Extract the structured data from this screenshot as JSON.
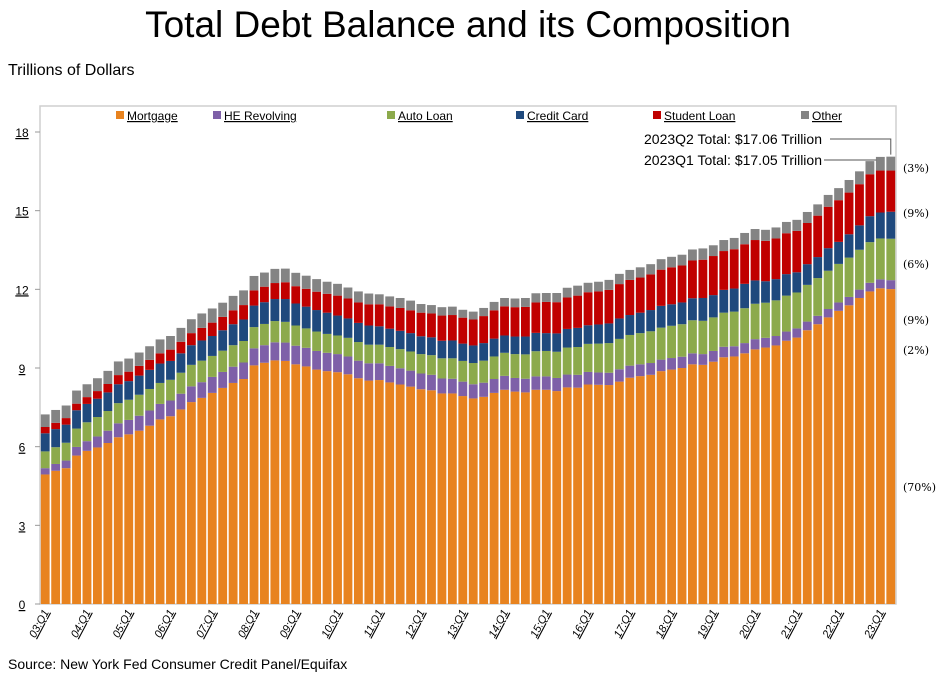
{
  "chart_data": {
    "type": "bar",
    "stacked": true,
    "title": "Total Debt Balance and its Composition",
    "ylabel": "Trillions of Dollars",
    "source": "Source: New York Fed Consumer Credit Panel/Equifax",
    "ylim": [
      0,
      18
    ],
    "yticks": [
      0,
      3,
      6,
      9,
      12,
      15,
      18
    ],
    "grid": false,
    "legend_position": "top",
    "categories": [
      "03:Q1",
      "03:Q2",
      "03:Q3",
      "03:Q4",
      "04:Q1",
      "04:Q2",
      "04:Q3",
      "04:Q4",
      "05:Q1",
      "05:Q2",
      "05:Q3",
      "05:Q4",
      "06:Q1",
      "06:Q2",
      "06:Q3",
      "06:Q4",
      "07:Q1",
      "07:Q2",
      "07:Q3",
      "07:Q4",
      "08:Q1",
      "08:Q2",
      "08:Q3",
      "08:Q4",
      "09:Q1",
      "09:Q2",
      "09:Q3",
      "09:Q4",
      "10:Q1",
      "10:Q2",
      "10:Q3",
      "10:Q4",
      "11:Q1",
      "11:Q2",
      "11:Q3",
      "11:Q4",
      "12:Q1",
      "12:Q2",
      "12:Q3",
      "12:Q4",
      "13:Q1",
      "13:Q2",
      "13:Q3",
      "13:Q4",
      "14:Q1",
      "14:Q2",
      "14:Q3",
      "14:Q4",
      "15:Q1",
      "15:Q2",
      "15:Q3",
      "15:Q4",
      "16:Q1",
      "16:Q2",
      "16:Q3",
      "16:Q4",
      "17:Q1",
      "17:Q2",
      "17:Q3",
      "17:Q4",
      "18:Q1",
      "18:Q2",
      "18:Q3",
      "18:Q4",
      "19:Q1",
      "19:Q2",
      "19:Q3",
      "19:Q4",
      "20:Q1",
      "20:Q2",
      "20:Q3",
      "20:Q4",
      "21:Q1",
      "21:Q2",
      "21:Q3",
      "21:Q4",
      "22:Q1",
      "22:Q2",
      "22:Q3",
      "22:Q4",
      "23:Q1",
      "23:Q2"
    ],
    "series": [
      {
        "name": "Mortgage",
        "color": "#E8831F",
        "share_label": "(70%)",
        "values": [
          4.94,
          5.08,
          5.18,
          5.66,
          5.84,
          5.97,
          6.14,
          6.36,
          6.47,
          6.61,
          6.8,
          7.04,
          7.16,
          7.42,
          7.7,
          7.86,
          8.05,
          8.24,
          8.43,
          8.58,
          9.1,
          9.2,
          9.29,
          9.27,
          9.14,
          9.06,
          8.94,
          8.88,
          8.84,
          8.76,
          8.61,
          8.52,
          8.54,
          8.45,
          8.37,
          8.29,
          8.19,
          8.15,
          8.03,
          8.03,
          7.93,
          7.84,
          7.9,
          8.05,
          8.17,
          8.1,
          8.07,
          8.17,
          8.17,
          8.12,
          8.26,
          8.25,
          8.37,
          8.36,
          8.35,
          8.48,
          8.63,
          8.69,
          8.74,
          8.88,
          8.94,
          9.0,
          9.14,
          9.12,
          9.24,
          9.41,
          9.44,
          9.56,
          9.71,
          9.78,
          9.86,
          10.04,
          10.16,
          10.44,
          10.67,
          10.93,
          11.18,
          11.39,
          11.67,
          11.92,
          12.04,
          12.01
        ]
      },
      {
        "name": "HE Revolving",
        "color": "#7E60A8",
        "share_label": "(2%)",
        "values": [
          0.24,
          0.26,
          0.29,
          0.33,
          0.37,
          0.42,
          0.47,
          0.53,
          0.55,
          0.57,
          0.58,
          0.59,
          0.6,
          0.6,
          0.6,
          0.6,
          0.61,
          0.61,
          0.62,
          0.63,
          0.65,
          0.67,
          0.69,
          0.7,
          0.71,
          0.71,
          0.71,
          0.7,
          0.69,
          0.68,
          0.67,
          0.66,
          0.64,
          0.63,
          0.62,
          0.61,
          0.6,
          0.59,
          0.57,
          0.56,
          0.55,
          0.54,
          0.54,
          0.53,
          0.53,
          0.52,
          0.52,
          0.51,
          0.51,
          0.5,
          0.49,
          0.49,
          0.48,
          0.47,
          0.47,
          0.47,
          0.46,
          0.45,
          0.45,
          0.44,
          0.44,
          0.43,
          0.42,
          0.41,
          0.41,
          0.4,
          0.39,
          0.39,
          0.39,
          0.37,
          0.36,
          0.35,
          0.35,
          0.33,
          0.32,
          0.32,
          0.32,
          0.32,
          0.32,
          0.33,
          0.34,
          0.34
        ]
      },
      {
        "name": "Auto Loan",
        "color": "#8CAA4C",
        "share_label": "(9%)",
        "values": [
          0.64,
          0.64,
          0.68,
          0.7,
          0.72,
          0.74,
          0.75,
          0.77,
          0.77,
          0.8,
          0.82,
          0.8,
          0.79,
          0.8,
          0.82,
          0.82,
          0.8,
          0.81,
          0.82,
          0.82,
          0.81,
          0.81,
          0.81,
          0.79,
          0.77,
          0.74,
          0.74,
          0.72,
          0.71,
          0.71,
          0.71,
          0.71,
          0.71,
          0.72,
          0.73,
          0.73,
          0.74,
          0.75,
          0.77,
          0.78,
          0.79,
          0.81,
          0.84,
          0.86,
          0.88,
          0.91,
          0.93,
          0.96,
          0.97,
          1.0,
          1.03,
          1.06,
          1.07,
          1.1,
          1.13,
          1.16,
          1.17,
          1.19,
          1.21,
          1.22,
          1.23,
          1.24,
          1.26,
          1.27,
          1.28,
          1.3,
          1.32,
          1.33,
          1.35,
          1.34,
          1.36,
          1.37,
          1.37,
          1.4,
          1.44,
          1.46,
          1.47,
          1.5,
          1.52,
          1.55,
          1.56,
          1.58
        ]
      },
      {
        "name": "Credit Card",
        "color": "#1F497D",
        "share_label": "(6%)",
        "values": [
          0.69,
          0.69,
          0.69,
          0.7,
          0.7,
          0.7,
          0.71,
          0.72,
          0.71,
          0.73,
          0.73,
          0.74,
          0.72,
          0.74,
          0.75,
          0.77,
          0.76,
          0.78,
          0.8,
          0.82,
          0.82,
          0.83,
          0.84,
          0.87,
          0.84,
          0.83,
          0.82,
          0.81,
          0.76,
          0.74,
          0.73,
          0.73,
          0.7,
          0.7,
          0.7,
          0.7,
          0.68,
          0.68,
          0.67,
          0.68,
          0.66,
          0.67,
          0.67,
          0.68,
          0.66,
          0.67,
          0.68,
          0.7,
          0.68,
          0.7,
          0.71,
          0.73,
          0.71,
          0.73,
          0.75,
          0.78,
          0.76,
          0.78,
          0.81,
          0.83,
          0.82,
          0.83,
          0.84,
          0.87,
          0.85,
          0.87,
          0.88,
          0.93,
          0.89,
          0.82,
          0.81,
          0.82,
          0.77,
          0.79,
          0.8,
          0.86,
          0.84,
          0.89,
          0.93,
          0.99,
          0.99,
          1.03
        ]
      },
      {
        "name": "Student Loan",
        "color": "#C00000",
        "share_label": "(9%)",
        "values": [
          0.24,
          0.24,
          0.25,
          0.25,
          0.26,
          0.29,
          0.32,
          0.35,
          0.36,
          0.37,
          0.38,
          0.39,
          0.43,
          0.44,
          0.46,
          0.48,
          0.51,
          0.51,
          0.53,
          0.55,
          0.58,
          0.59,
          0.61,
          0.64,
          0.66,
          0.68,
          0.7,
          0.72,
          0.76,
          0.76,
          0.78,
          0.81,
          0.84,
          0.85,
          0.87,
          0.87,
          0.9,
          0.91,
          0.96,
          0.97,
          0.99,
          0.99,
          1.03,
          1.08,
          1.11,
          1.12,
          1.13,
          1.16,
          1.19,
          1.19,
          1.2,
          1.23,
          1.26,
          1.26,
          1.28,
          1.31,
          1.34,
          1.34,
          1.36,
          1.38,
          1.41,
          1.41,
          1.44,
          1.46,
          1.49,
          1.48,
          1.5,
          1.51,
          1.54,
          1.54,
          1.55,
          1.56,
          1.58,
          1.57,
          1.58,
          1.58,
          1.59,
          1.59,
          1.57,
          1.6,
          1.6,
          1.57
        ]
      },
      {
        "name": "Other",
        "color": "#848484",
        "share_label": "(3%)",
        "values": [
          0.48,
          0.49,
          0.48,
          0.5,
          0.49,
          0.49,
          0.5,
          0.52,
          0.5,
          0.51,
          0.52,
          0.53,
          0.52,
          0.53,
          0.53,
          0.55,
          0.54,
          0.54,
          0.55,
          0.56,
          0.55,
          0.54,
          0.54,
          0.52,
          0.51,
          0.5,
          0.48,
          0.46,
          0.45,
          0.42,
          0.42,
          0.41,
          0.38,
          0.38,
          0.38,
          0.37,
          0.33,
          0.32,
          0.32,
          0.32,
          0.3,
          0.3,
          0.31,
          0.32,
          0.32,
          0.33,
          0.34,
          0.35,
          0.34,
          0.35,
          0.37,
          0.38,
          0.36,
          0.37,
          0.38,
          0.39,
          0.38,
          0.39,
          0.39,
          0.4,
          0.4,
          0.41,
          0.42,
          0.43,
          0.41,
          0.42,
          0.43,
          0.43,
          0.42,
          0.42,
          0.42,
          0.43,
          0.42,
          0.42,
          0.43,
          0.45,
          0.46,
          0.48,
          0.49,
          0.5,
          0.52,
          0.53
        ]
      }
    ],
    "annotations": [
      {
        "text": "2023Q2 Total: $17.06 Trillion",
        "category": "23:Q2",
        "value": 17.06
      },
      {
        "text": "2023Q1 Total: $17.05 Trillion",
        "category": "23:Q1",
        "value": 17.05
      }
    ]
  }
}
